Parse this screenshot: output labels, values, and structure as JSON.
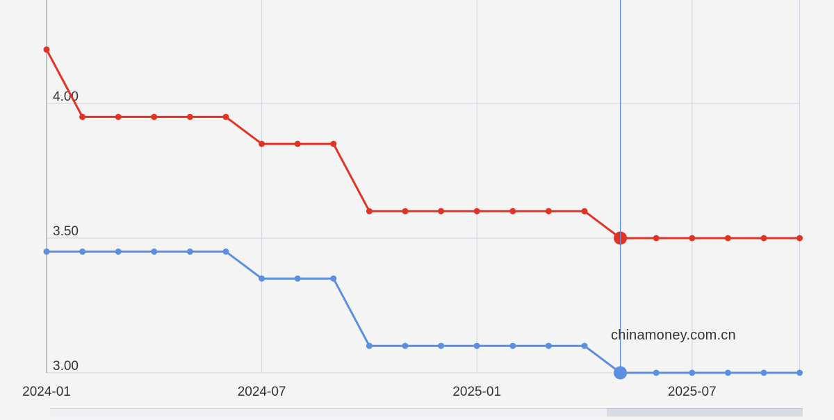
{
  "chart_data": {
    "type": "line",
    "x": [
      "2024-01",
      "2024-02",
      "2024-03",
      "2024-04",
      "2024-05",
      "2024-06",
      "2024-07",
      "2024-08",
      "2024-09",
      "2024-10",
      "2024-11",
      "2024-12",
      "2025-01",
      "2025-02",
      "2025-03",
      "2025-04",
      "2025-05",
      "2025-06",
      "2025-07",
      "2025-08",
      "2025-09",
      "2025-10"
    ],
    "x_tick_labels": [
      "2024-01",
      "2024-07",
      "2025-01",
      "2025-07"
    ],
    "y_tick_labels": [
      "3.00",
      "3.50",
      "4.00"
    ],
    "ylim": [
      3.0,
      4.2
    ],
    "grid": true,
    "series": [
      {
        "color": "#e03324",
        "values": [
          4.2,
          3.95,
          3.95,
          3.95,
          3.95,
          3.95,
          3.85,
          3.85,
          3.85,
          3.6,
          3.6,
          3.6,
          3.6,
          3.6,
          3.6,
          3.6,
          3.5,
          3.5,
          3.5,
          3.5,
          3.5,
          3.5
        ]
      },
      {
        "color": "#5b8fe0",
        "values": [
          3.45,
          3.45,
          3.45,
          3.45,
          3.45,
          3.45,
          3.35,
          3.35,
          3.35,
          3.1,
          3.1,
          3.1,
          3.1,
          3.1,
          3.1,
          3.1,
          3.0,
          3.0,
          3.0,
          3.0,
          3.0,
          3.0
        ]
      }
    ],
    "crosshair_x": "2025-05",
    "watermark": "chinamoney.com.cn"
  }
}
